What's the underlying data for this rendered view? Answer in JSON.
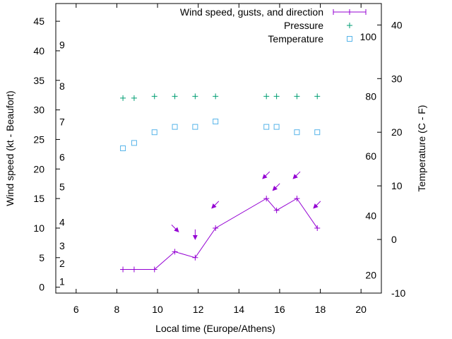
{
  "chart_data": {
    "type": "line",
    "title": "",
    "xlabel": "Local time (Europe/Athens)",
    "ylabel_left": "Wind speed (kt - Beaufort)",
    "ylabel_right": "Temperature (C - F)",
    "xlim": [
      5,
      21
    ],
    "ylim_left": [
      -1,
      48
    ],
    "ylim_right_celsius": [
      -10,
      44
    ],
    "x_ticks": [
      6,
      8,
      10,
      12,
      14,
      16,
      18,
      20
    ],
    "y_left_ticks": [
      0,
      5,
      10,
      15,
      20,
      25,
      30,
      35,
      40,
      45
    ],
    "beaufort_labels": [
      {
        "label": "1",
        "kt": 1
      },
      {
        "label": "2",
        "kt": 4
      },
      {
        "label": "3",
        "kt": 7
      },
      {
        "label": "4",
        "kt": 11
      },
      {
        "label": "5",
        "kt": 17
      },
      {
        "label": "6",
        "kt": 22
      },
      {
        "label": "7",
        "kt": 28
      },
      {
        "label": "8",
        "kt": 34
      },
      {
        "label": "9",
        "kt": 41
      }
    ],
    "celsius_ticks": [
      -10,
      0,
      10,
      20,
      30,
      40
    ],
    "fahrenheit_labels": [
      {
        "label": "20",
        "c": -6.67
      },
      {
        "label": "40",
        "c": 4.44
      },
      {
        "label": "60",
        "c": 15.56
      },
      {
        "label": "80",
        "c": 26.67
      },
      {
        "label": "100",
        "c": 37.78
      }
    ],
    "legend": {
      "position": "top-right",
      "entries": [
        "Wind speed, gusts, and direction",
        "Pressure",
        "Temperature"
      ]
    },
    "series": [
      {
        "name": "Wind speed, gusts, and direction",
        "color": "#9400d3",
        "x": [
          8.3,
          8.85,
          9.85,
          10.85,
          11.85,
          12.85,
          15.35,
          15.85,
          16.85,
          17.85
        ],
        "values": [
          3,
          3,
          3,
          6,
          5,
          10,
          15,
          13,
          15,
          10
        ],
        "gusts": [
          null,
          null,
          null,
          10,
          9,
          14,
          19,
          17,
          19,
          14
        ],
        "gust_direction": [
          null,
          null,
          null,
          "NW",
          "N",
          "NE",
          "NE",
          "NE",
          "NE",
          "NE"
        ]
      },
      {
        "name": "Pressure",
        "color": "#009e73",
        "x": [
          8.3,
          8.85,
          9.85,
          10.85,
          11.85,
          12.85,
          15.35,
          15.85,
          16.85,
          17.85
        ],
        "values": [
          32,
          32,
          32.3,
          32.3,
          32.3,
          32.3,
          32.3,
          32.3,
          32.3,
          32.3
        ]
      },
      {
        "name": "Temperature",
        "color": "#56b4e9",
        "axis": "right",
        "x": [
          8.3,
          8.85,
          9.85,
          10.85,
          11.85,
          12.85,
          15.35,
          15.85,
          16.85,
          17.85
        ],
        "values": [
          17,
          18,
          20,
          21,
          21,
          22,
          21,
          21,
          20,
          20
        ]
      }
    ]
  }
}
